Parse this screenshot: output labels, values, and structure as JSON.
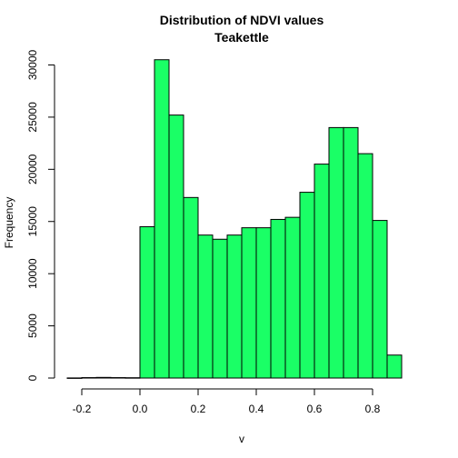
{
  "chart_data": {
    "type": "bar",
    "title": "Distribution of NDVI values",
    "subtitle": "Teakettle",
    "xlabel": "v",
    "ylabel": "Frequency",
    "bar_color": "#1aff66",
    "bin_width": 0.05,
    "bins": [
      {
        "x0": -0.25,
        "x1": -0.2,
        "count": 10
      },
      {
        "x0": -0.2,
        "x1": -0.15,
        "count": 40
      },
      {
        "x0": -0.15,
        "x1": -0.1,
        "count": 60
      },
      {
        "x0": -0.1,
        "x1": -0.05,
        "count": 40
      },
      {
        "x0": -0.05,
        "x1": 0.0,
        "count": 30
      },
      {
        "x0": 0.0,
        "x1": 0.05,
        "count": 14500
      },
      {
        "x0": 0.05,
        "x1": 0.1,
        "count": 30500
      },
      {
        "x0": 0.1,
        "x1": 0.15,
        "count": 25200
      },
      {
        "x0": 0.15,
        "x1": 0.2,
        "count": 17300
      },
      {
        "x0": 0.2,
        "x1": 0.25,
        "count": 13700
      },
      {
        "x0": 0.25,
        "x1": 0.3,
        "count": 13300
      },
      {
        "x0": 0.3,
        "x1": 0.35,
        "count": 13700
      },
      {
        "x0": 0.35,
        "x1": 0.4,
        "count": 14400
      },
      {
        "x0": 0.4,
        "x1": 0.45,
        "count": 14400
      },
      {
        "x0": 0.45,
        "x1": 0.5,
        "count": 15200
      },
      {
        "x0": 0.5,
        "x1": 0.55,
        "count": 15400
      },
      {
        "x0": 0.55,
        "x1": 0.6,
        "count": 17800
      },
      {
        "x0": 0.6,
        "x1": 0.65,
        "count": 20500
      },
      {
        "x0": 0.65,
        "x1": 0.7,
        "count": 24000
      },
      {
        "x0": 0.7,
        "x1": 0.75,
        "count": 24000
      },
      {
        "x0": 0.75,
        "x1": 0.8,
        "count": 21500
      },
      {
        "x0": 0.8,
        "x1": 0.85,
        "count": 15100
      },
      {
        "x0": 0.85,
        "x1": 0.9,
        "count": 2200
      }
    ],
    "xticks": [
      -0.2,
      0.0,
      0.2,
      0.4,
      0.6,
      0.8
    ],
    "xtick_labels": [
      "-0.2",
      "0.0",
      "0.2",
      "0.4",
      "0.6",
      "0.8"
    ],
    "yticks": [
      0,
      5000,
      10000,
      15000,
      20000,
      25000,
      30000
    ],
    "ytick_labels": [
      "0",
      "5000",
      "10000",
      "15000",
      "20000",
      "25000",
      "30000"
    ],
    "xlim": [
      -0.25,
      0.95
    ],
    "ylim": [
      0,
      31000
    ],
    "grid": false,
    "legend": false
  }
}
